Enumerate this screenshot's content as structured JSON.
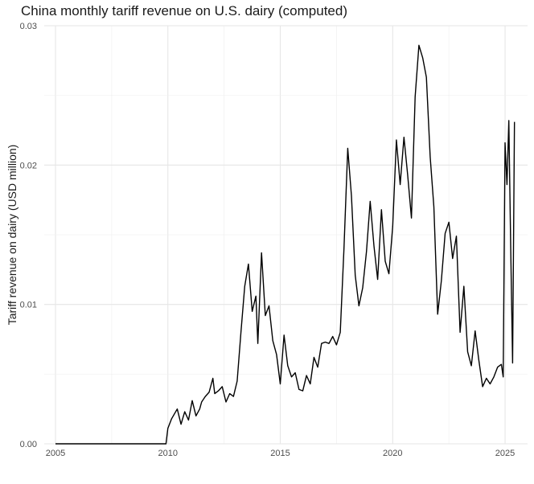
{
  "chart_data": {
    "type": "line",
    "title": "China monthly tariff revenue on U.S. dairy (computed)",
    "xlabel": "",
    "ylabel": "Tariff revenue on dairy (USD million)",
    "x_ticks": [
      "2005",
      "2010",
      "2015",
      "2020",
      "2025"
    ],
    "y_ticks": [
      "0.00",
      "0.01",
      "0.02",
      "0.03"
    ],
    "xlim": [
      "2004-07",
      "2026-01"
    ],
    "ylim": [
      0,
      0.03
    ],
    "grid": true,
    "legend": "none",
    "line_color": "#000000",
    "series": [
      {
        "x": [
          "2005-01",
          "2009-12",
          "2010-01",
          "2010-03",
          "2010-06",
          "2010-08",
          "2010-10",
          "2010-12",
          "2011-02",
          "2011-04",
          "2011-06",
          "2011-07",
          "2011-09",
          "2011-11",
          "2012-01",
          "2012-02",
          "2012-04",
          "2012-06",
          "2012-08",
          "2012-10",
          "2012-12",
          "2013-02",
          "2013-04",
          "2013-06",
          "2013-08",
          "2013-10",
          "2013-12",
          "2014-01",
          "2014-03",
          "2014-05",
          "2014-07",
          "2014-09",
          "2014-11",
          "2015-01",
          "2015-03",
          "2015-05",
          "2015-07",
          "2015-09",
          "2015-11",
          "2016-01",
          "2016-03",
          "2016-05",
          "2016-07",
          "2016-09",
          "2016-11",
          "2017-01",
          "2017-03",
          "2017-05",
          "2017-07",
          "2017-09",
          "2017-11",
          "2018-01",
          "2018-03",
          "2018-05",
          "2018-07",
          "2018-09",
          "2018-11",
          "2019-01",
          "2019-03",
          "2019-05",
          "2019-07",
          "2019-09",
          "2019-11",
          "2020-01",
          "2020-03",
          "2020-05",
          "2020-07",
          "2020-09",
          "2020-11",
          "2021-01",
          "2021-03",
          "2021-05",
          "2021-07",
          "2021-09",
          "2021-11",
          "2022-01",
          "2022-03",
          "2022-05",
          "2022-07",
          "2022-09",
          "2022-11",
          "2023-01",
          "2023-03",
          "2023-05",
          "2023-07",
          "2023-09",
          "2023-11",
          "2024-01",
          "2024-03",
          "2024-05",
          "2024-07",
          "2024-09",
          "2024-11",
          "2024-12",
          "2025-01",
          "2025-02",
          "2025-03",
          "2025-04",
          "2025-05",
          "2025-06"
        ],
        "values": [
          0,
          0,
          0.0011,
          0.0018,
          0.0025,
          0.0014,
          0.0023,
          0.0017,
          0.0031,
          0.002,
          0.0025,
          0.003,
          0.0034,
          0.0037,
          0.0047,
          0.0036,
          0.0038,
          0.0041,
          0.003,
          0.0036,
          0.0034,
          0.0045,
          0.008,
          0.0113,
          0.0129,
          0.0095,
          0.0106,
          0.0072,
          0.0137,
          0.0092,
          0.0099,
          0.0074,
          0.0064,
          0.0043,
          0.0078,
          0.0056,
          0.0048,
          0.0051,
          0.0039,
          0.0038,
          0.0049,
          0.0043,
          0.0062,
          0.0055,
          0.0072,
          0.0073,
          0.0072,
          0.0077,
          0.0071,
          0.008,
          0.014,
          0.0212,
          0.0178,
          0.0121,
          0.0099,
          0.0112,
          0.0138,
          0.0174,
          0.0142,
          0.0118,
          0.0168,
          0.0131,
          0.0122,
          0.0156,
          0.0218,
          0.0186,
          0.022,
          0.0193,
          0.0162,
          0.0249,
          0.0286,
          0.0277,
          0.0263,
          0.0206,
          0.017,
          0.0093,
          0.0117,
          0.0151,
          0.0159,
          0.0133,
          0.0149,
          0.008,
          0.0113,
          0.0066,
          0.0056,
          0.0081,
          0.006,
          0.0041,
          0.0047,
          0.0043,
          0.0048,
          0.0055,
          0.0057,
          0.0048,
          0.0216,
          0.0186,
          0.0232,
          0.0142,
          0.0058,
          0.0231
        ]
      }
    ]
  }
}
